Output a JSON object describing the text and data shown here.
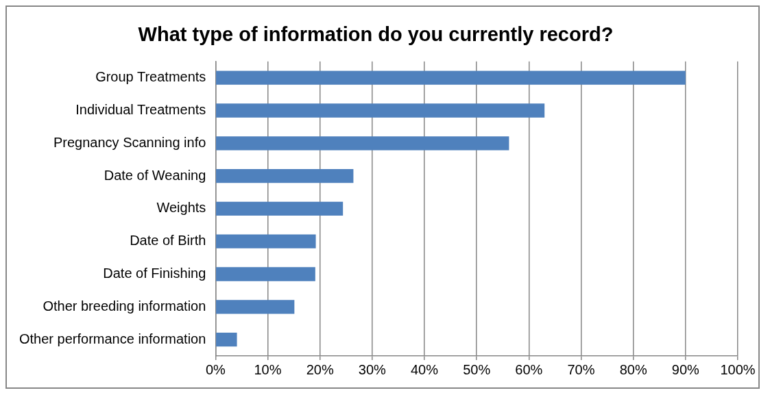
{
  "chart_data": {
    "type": "bar",
    "orientation": "horizontal",
    "title": "What type of information do you currently record?",
    "categories": [
      "Group Treatments",
      "Individual Treatments",
      "Pregnancy Scanning info",
      "Date of Weaning",
      "Weights",
      "Date of Birth",
      "Date of Finishing",
      "Other breeding information",
      "Other performance information"
    ],
    "values": [
      90,
      63,
      56.2,
      26.4,
      24.4,
      19.2,
      19.1,
      15.1,
      4.1
    ],
    "color": "#4f81bd",
    "xlim": [
      0,
      100
    ],
    "xticks": [
      {
        "value": 0,
        "label": "0%"
      },
      {
        "value": 10,
        "label": "10%"
      },
      {
        "value": 20,
        "label": "20%"
      },
      {
        "value": 30,
        "label": "30%"
      },
      {
        "value": 40,
        "label": "40%"
      },
      {
        "value": 50,
        "label": "50%"
      },
      {
        "value": 60,
        "label": "60%"
      },
      {
        "value": 70,
        "label": "70%"
      },
      {
        "value": 80,
        "label": "80%"
      },
      {
        "value": 90,
        "label": "90%"
      },
      {
        "value": 100,
        "label": "100%"
      }
    ],
    "grid": "x",
    "legend": false
  }
}
